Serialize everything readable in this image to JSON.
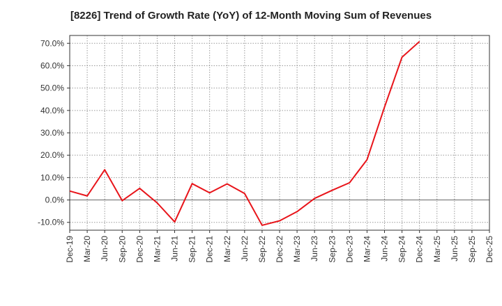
{
  "chart_data": {
    "type": "line",
    "title": "[8226]  Trend of Growth Rate (YoY) of 12-Month Moving Sum of Revenues",
    "xlabel": "",
    "ylabel": "",
    "ylim": [
      -13.5,
      73.5
    ],
    "yticks": [
      -10,
      0,
      10,
      20,
      30,
      40,
      50,
      60,
      70
    ],
    "ytick_labels": [
      "-10.0%",
      "0.0%",
      "10.0%",
      "20.0%",
      "30.0%",
      "40.0%",
      "50.0%",
      "60.0%",
      "70.0%"
    ],
    "x_tick_labels": [
      "Dec-19",
      "Mar-20",
      "Jun-20",
      "Sep-20",
      "Dec-20",
      "Mar-21",
      "Jun-21",
      "Sep-21",
      "Dec-21",
      "Mar-22",
      "Jun-22",
      "Sep-22",
      "Dec-22",
      "Mar-23",
      "Jun-23",
      "Sep-23",
      "Dec-23",
      "Mar-24",
      "Jun-24",
      "Sep-24",
      "Dec-24",
      "Mar-25",
      "Jun-25",
      "Sep-25",
      "Dec-25"
    ],
    "x_tick_labels_shown": [
      "Dec-19",
      "Mar-20",
      "Jun-20",
      "Sep-20",
      "Dec-20",
      "Mar-21",
      "Jun-21",
      "Sep-21",
      "Dec-21",
      "Mar-22",
      "Jun-22",
      "Sep-22",
      "Dec-22",
      "Mar-23",
      "Jun-23",
      "Sep-23",
      "Dec-23",
      "Mar-24",
      "Jun-24",
      "Sep-24",
      "Dec-24",
      "Mar-25",
      "Jun-25",
      "Sep-25",
      "Dec-25"
    ],
    "grid": true,
    "series": [
      {
        "color": "#e8141a",
        "x": [
          "Dec-19",
          "Mar-20",
          "Jun-20",
          "Sep-20",
          "Dec-20",
          "Mar-21",
          "Jun-21",
          "Sep-21",
          "Dec-21",
          "Mar-22",
          "Jun-22",
          "Sep-22",
          "Dec-22",
          "Mar-23",
          "Jun-23",
          "Sep-23",
          "Dec-23",
          "Mar-24",
          "Jun-24",
          "Sep-24",
          "Dec-24"
        ],
        "values": [
          4.0,
          1.8,
          13.5,
          -0.3,
          5.2,
          -1.3,
          -9.8,
          7.3,
          3.2,
          7.2,
          2.9,
          -11.3,
          -9.3,
          -5.2,
          0.7,
          4.3,
          7.7,
          18.0,
          41.5,
          63.8,
          70.8
        ]
      }
    ]
  }
}
